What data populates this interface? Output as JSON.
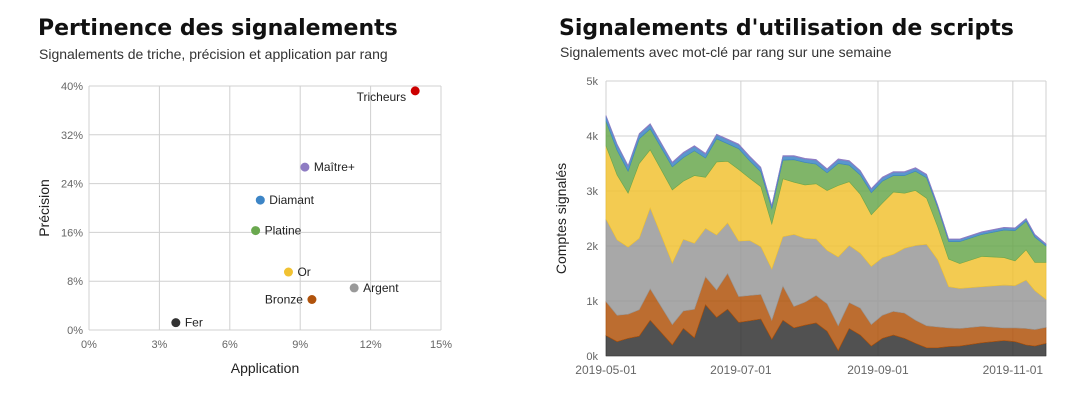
{
  "left": {
    "title": "Pertinence des signalements",
    "subtitle": "Signalements de triche, précision et application par rang"
  },
  "right": {
    "title": "Signalements d'utilisation de scripts",
    "subtitle": "Signalements avec mot-clé par rang sur une semaine"
  },
  "colors": {
    "grid": "#d0d0d0",
    "tick": "#666666",
    "Fer": "#333333",
    "Bronze": "#b0530c",
    "Argent": "#999999",
    "Or": "#f1c232",
    "Platine": "#6aa84f",
    "Diamant": "#3d85c6",
    "Maître+": "#8e7cc3",
    "Tricheurs": "#cc0000"
  },
  "chart_data": [
    {
      "type": "scatter",
      "xlabel": "Application",
      "ylabel": "Précision",
      "xlim": [
        0,
        0.15
      ],
      "ylim": [
        0,
        0.4
      ],
      "xticks": [
        "0%",
        "3%",
        "6%",
        "9%",
        "12%",
        "15%"
      ],
      "yticks": [
        "0%",
        "8%",
        "16%",
        "24%",
        "32%",
        "40%"
      ],
      "grid": true,
      "points": [
        {
          "label": "Fer",
          "x": 0.037,
          "y": 0.012,
          "color_key": "Fer",
          "label_side": "right"
        },
        {
          "label": "Bronze",
          "x": 0.095,
          "y": 0.05,
          "color_key": "Bronze",
          "label_side": "left"
        },
        {
          "label": "Argent",
          "x": 0.113,
          "y": 0.069,
          "color_key": "Argent",
          "label_side": "right"
        },
        {
          "label": "Or",
          "x": 0.085,
          "y": 0.095,
          "color_key": "Or",
          "label_side": "right"
        },
        {
          "label": "Platine",
          "x": 0.071,
          "y": 0.163,
          "color_key": "Platine",
          "label_side": "right"
        },
        {
          "label": "Diamant",
          "x": 0.073,
          "y": 0.213,
          "color_key": "Diamant",
          "label_side": "right"
        },
        {
          "label": "Maître+",
          "x": 0.092,
          "y": 0.267,
          "color_key": "Maître+",
          "label_side": "right"
        },
        {
          "label": "Tricheurs",
          "x": 0.139,
          "y": 0.392,
          "color_key": "Tricheurs",
          "label_side": "left"
        }
      ]
    },
    {
      "type": "area",
      "stacked": true,
      "xlabel": "",
      "ylabel": "Comptes signalés",
      "ylim": [
        0,
        5000
      ],
      "yticks": [
        "0k",
        "1k",
        "2k",
        "3k",
        "4k",
        "5k"
      ],
      "xlim": [
        "2019-05-01",
        "2019-11-16"
      ],
      "xticks": [
        "2019-05-01",
        "2019-07-01",
        "2019-09-01",
        "2019-11-01"
      ],
      "grid": true,
      "x": [
        "2019-05-01",
        "2019-05-06",
        "2019-05-11",
        "2019-05-16",
        "2019-05-21",
        "2019-05-31",
        "2019-06-05",
        "2019-06-10",
        "2019-06-15",
        "2019-06-20",
        "2019-06-25",
        "2019-06-30",
        "2019-07-05",
        "2019-07-10",
        "2019-07-15",
        "2019-07-20",
        "2019-07-25",
        "2019-07-30",
        "2019-08-04",
        "2019-08-09",
        "2019-08-14",
        "2019-08-19",
        "2019-08-24",
        "2019-08-29",
        "2019-09-03",
        "2019-09-08",
        "2019-09-13",
        "2019-09-18",
        "2019-09-23",
        "2019-09-28",
        "2019-10-03",
        "2019-10-08",
        "2019-10-18",
        "2019-10-28",
        "2019-11-02",
        "2019-11-07",
        "2019-11-11",
        "2019-11-16"
      ],
      "series": [
        {
          "color_key": "Fer",
          "values": [
            370,
            260,
            320,
            360,
            650,
            200,
            500,
            330,
            930,
            700,
            850,
            610,
            640,
            670,
            300,
            650,
            510,
            560,
            600,
            450,
            100,
            500,
            380,
            180,
            320,
            380,
            320,
            230,
            150,
            150,
            170,
            180,
            240,
            280,
            260,
            200,
            180,
            230
          ]
        },
        {
          "color_key": "Bronze",
          "values": [
            620,
            480,
            440,
            480,
            570,
            370,
            320,
            520,
            510,
            500,
            650,
            470,
            460,
            450,
            350,
            620,
            390,
            420,
            500,
            500,
            450,
            470,
            490,
            390,
            420,
            430,
            460,
            420,
            400,
            380,
            340,
            320,
            300,
            230,
            250,
            300,
            300,
            290
          ]
        },
        {
          "color_key": "Argent",
          "values": [
            1500,
            1370,
            1220,
            1300,
            1470,
            1120,
            1300,
            1200,
            880,
            1000,
            920,
            1010,
            1000,
            870,
            930,
            900,
            1310,
            1160,
            1030,
            970,
            1250,
            1040,
            1000,
            1060,
            1050,
            1040,
            1180,
            1360,
            1480,
            1220,
            750,
            730,
            720,
            780,
            770,
            880,
            710,
            510
          ]
        },
        {
          "color_key": "Or",
          "values": [
            1330,
            1180,
            980,
            1360,
            1060,
            1330,
            1060,
            1230,
            930,
            1330,
            1120,
            1300,
            1130,
            1090,
            820,
            1050,
            950,
            970,
            1000,
            1090,
            1300,
            1160,
            1070,
            940,
            990,
            1130,
            1000,
            1000,
            840,
            600,
            500,
            450,
            550,
            500,
            450,
            550,
            510,
            670
          ]
        },
        {
          "color_key": "Platine",
          "values": [
            450,
            450,
            400,
            450,
            380,
            420,
            430,
            450,
            350,
            420,
            320,
            380,
            320,
            270,
            280,
            340,
            410,
            410,
            360,
            320,
            400,
            300,
            350,
            400,
            400,
            300,
            320,
            350,
            370,
            350,
            320,
            400,
            400,
            500,
            550,
            520,
            460,
            300
          ]
        },
        {
          "color_key": "Diamant",
          "values": [
            90,
            100,
            90,
            80,
            80,
            70,
            80,
            80,
            70,
            70,
            70,
            70,
            70,
            70,
            50,
            70,
            60,
            60,
            70,
            60,
            70,
            70,
            70,
            60,
            60,
            60,
            60,
            50,
            50,
            40,
            40,
            40,
            40,
            40,
            40,
            40,
            40,
            30
          ]
        },
        {
          "color_key": "Maître+",
          "values": [
            15,
            15,
            15,
            15,
            15,
            15,
            15,
            15,
            15,
            15,
            15,
            15,
            15,
            15,
            10,
            15,
            15,
            15,
            15,
            15,
            15,
            15,
            15,
            15,
            15,
            15,
            15,
            15,
            15,
            10,
            10,
            10,
            10,
            10,
            10,
            10,
            10,
            10
          ]
        }
      ]
    }
  ]
}
